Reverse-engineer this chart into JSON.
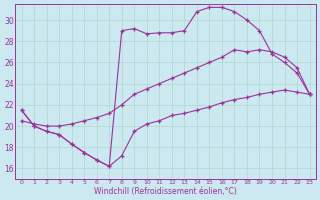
{
  "background_color": "#cce8f0",
  "grid_color": "#b0d8cc",
  "line_color": "#993399",
  "xlabel": "Windchill (Refroidissement éolien,°C)",
  "xlim": [
    -0.5,
    23.5
  ],
  "ylim": [
    15.0,
    31.5
  ],
  "yticks": [
    16,
    18,
    20,
    22,
    24,
    26,
    28,
    30
  ],
  "xticks": [
    0,
    1,
    2,
    3,
    4,
    5,
    6,
    7,
    8,
    9,
    10,
    11,
    12,
    13,
    14,
    15,
    16,
    17,
    18,
    19,
    20,
    21,
    22,
    23
  ],
  "curve1_x": [
    0,
    1,
    2,
    3,
    4,
    5,
    6,
    7,
    8,
    9,
    10,
    11,
    12,
    13,
    14,
    15,
    16,
    17,
    18,
    19,
    20,
    21,
    22,
    23
  ],
  "curve1_y": [
    21.5,
    20.0,
    19.5,
    19.2,
    18.3,
    17.5,
    16.8,
    16.2,
    17.2,
    19.5,
    20.2,
    20.5,
    21.0,
    21.2,
    21.5,
    21.8,
    22.2,
    22.5,
    22.7,
    23.0,
    23.2,
    23.4,
    23.2,
    23.0
  ],
  "curve2_x": [
    0,
    1,
    2,
    3,
    4,
    5,
    6,
    7,
    8,
    9,
    10,
    11,
    12,
    13,
    14,
    15,
    16,
    17,
    18,
    19,
    20,
    21,
    22,
    23
  ],
  "curve2_y": [
    21.5,
    20.0,
    19.5,
    19.2,
    18.3,
    17.5,
    16.8,
    16.2,
    29.0,
    29.2,
    28.7,
    28.8,
    28.8,
    29.0,
    30.8,
    31.2,
    31.2,
    30.8,
    30.0,
    29.0,
    26.8,
    26.0,
    25.0,
    23.0
  ],
  "curve3_x": [
    0,
    1,
    2,
    3,
    4,
    5,
    6,
    7,
    8,
    9,
    10,
    11,
    12,
    13,
    14,
    15,
    16,
    17,
    18,
    19,
    20,
    21,
    22,
    23
  ],
  "curve3_y": [
    20.5,
    20.2,
    20.0,
    20.0,
    20.2,
    20.5,
    20.8,
    21.2,
    22.0,
    23.0,
    23.5,
    24.0,
    24.5,
    25.0,
    25.5,
    26.0,
    26.5,
    27.2,
    27.0,
    27.2,
    27.0,
    26.5,
    25.5,
    23.0
  ]
}
